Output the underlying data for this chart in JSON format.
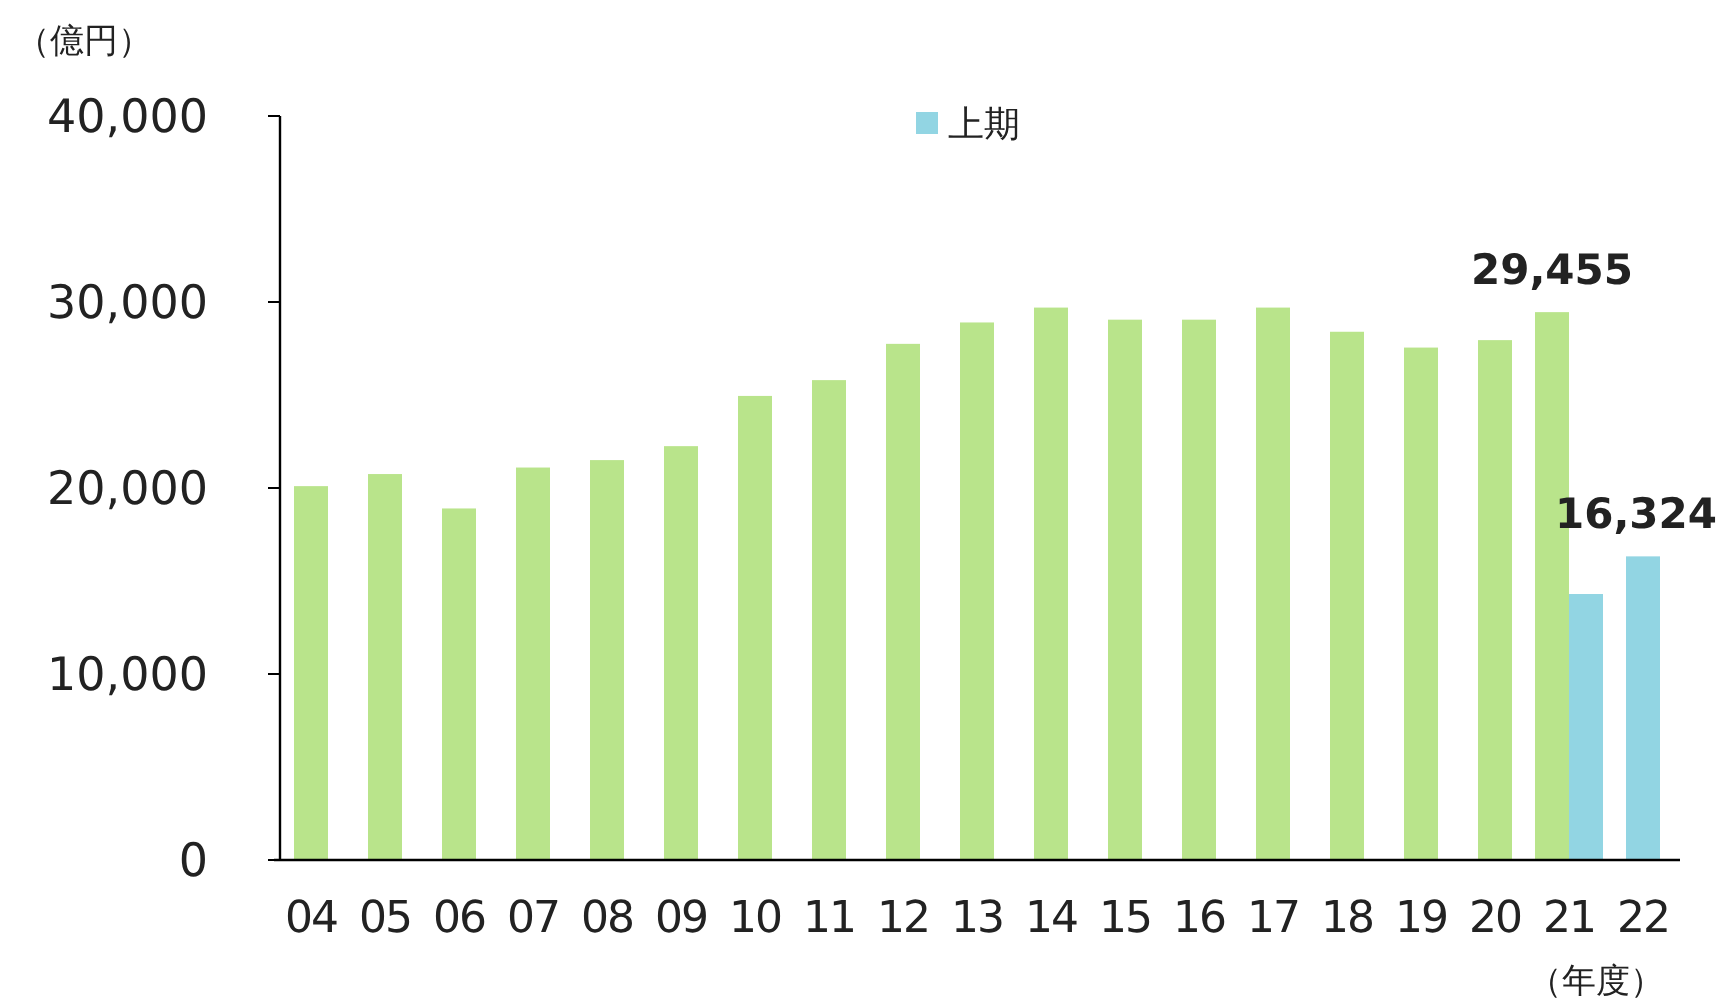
{
  "chart_data": {
    "type": "bar",
    "ylabel": "（億円）",
    "xlabel": "（年度）",
    "categories": [
      "04",
      "05",
      "06",
      "07",
      "08",
      "09",
      "10",
      "11",
      "12",
      "13",
      "14",
      "15",
      "16",
      "17",
      "18",
      "19",
      "20",
      "21",
      "22"
    ],
    "series": [
      {
        "color": "#b9e48b",
        "values": [
          20100,
          20750,
          18900,
          21100,
          21500,
          22250,
          24950,
          25800,
          27750,
          28900,
          29700,
          29050,
          29050,
          29700,
          28400,
          27550,
          27950,
          29455,
          null
        ],
        "value_labels": [
          null,
          null,
          null,
          null,
          null,
          null,
          null,
          null,
          null,
          null,
          null,
          null,
          null,
          null,
          null,
          null,
          null,
          "29,455",
          null
        ]
      },
      {
        "name": "上期",
        "color": "#92d5e3",
        "values": [
          null,
          null,
          null,
          null,
          null,
          null,
          null,
          null,
          null,
          null,
          null,
          null,
          null,
          null,
          null,
          null,
          null,
          14300,
          16324
        ],
        "value_labels": [
          null,
          null,
          null,
          null,
          null,
          null,
          null,
          null,
          null,
          null,
          null,
          null,
          null,
          null,
          null,
          null,
          null,
          null,
          "16,324"
        ]
      }
    ],
    "ylim": [
      0,
      40000
    ],
    "yticks": [
      {
        "value": 0,
        "label": "0"
      },
      {
        "value": 10000,
        "label": "10,000"
      },
      {
        "value": 20000,
        "label": "20,000"
      },
      {
        "value": 30000,
        "label": "30,000"
      },
      {
        "value": 40000,
        "label": "40,000"
      }
    ],
    "legend": "top",
    "grid": false
  }
}
